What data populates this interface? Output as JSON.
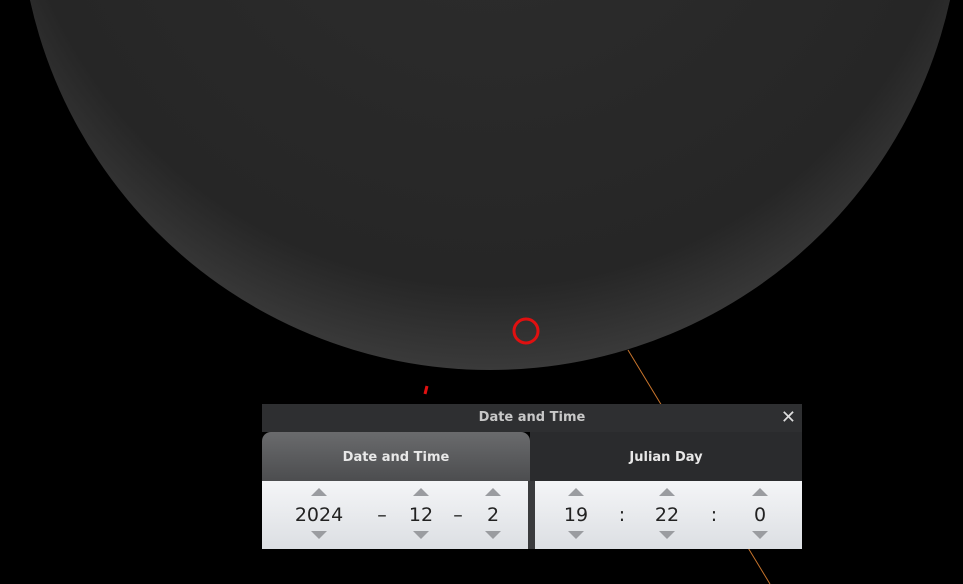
{
  "dialog": {
    "title": "Date and Time",
    "tabs": [
      "Date and Time",
      "Julian Day"
    ],
    "date": {
      "year": 2024,
      "month": 12,
      "day": 2,
      "separator": "–"
    },
    "time": {
      "hour": 19,
      "minute": 22,
      "second": 0,
      "separator": ":"
    }
  }
}
